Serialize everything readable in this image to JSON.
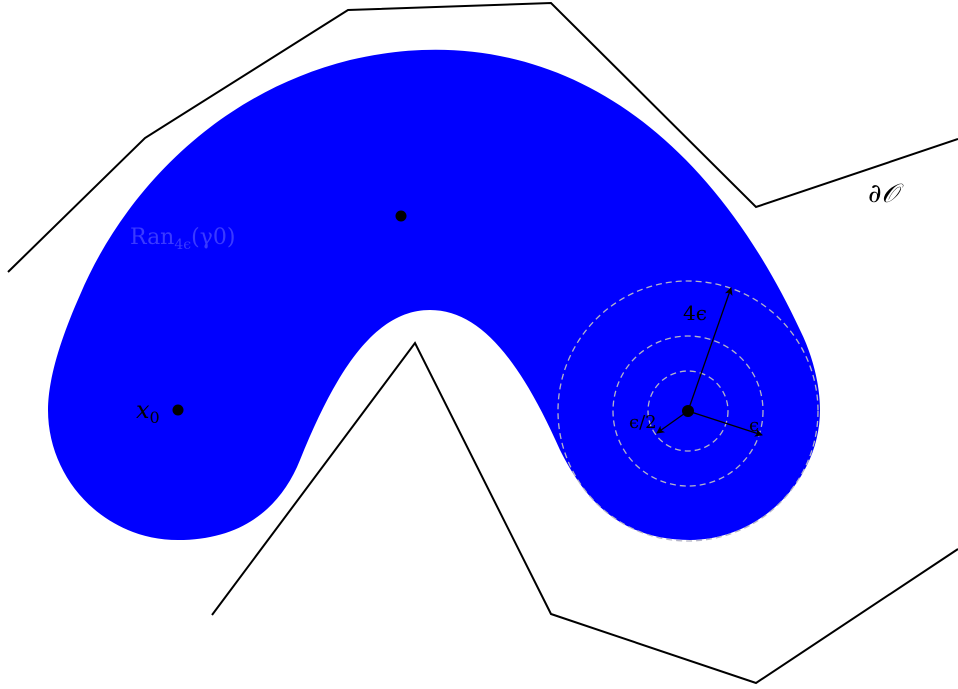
{
  "labels": {
    "boundary": "∂𝒪",
    "tube_main": "Ran",
    "tube_sub": "4ϵ",
    "tube_arg": "(γ0)",
    "start_point": "x0",
    "radius_outer": "4ϵ",
    "radius_middle": "ϵ",
    "radius_inner": "ϵ/2"
  },
  "colors": {
    "tube_fill": "#0000ff",
    "tube_label": "#3a3aff",
    "boundary_stroke": "#000000",
    "circle_stroke": "#b4b4c8",
    "point": "#000000"
  }
}
